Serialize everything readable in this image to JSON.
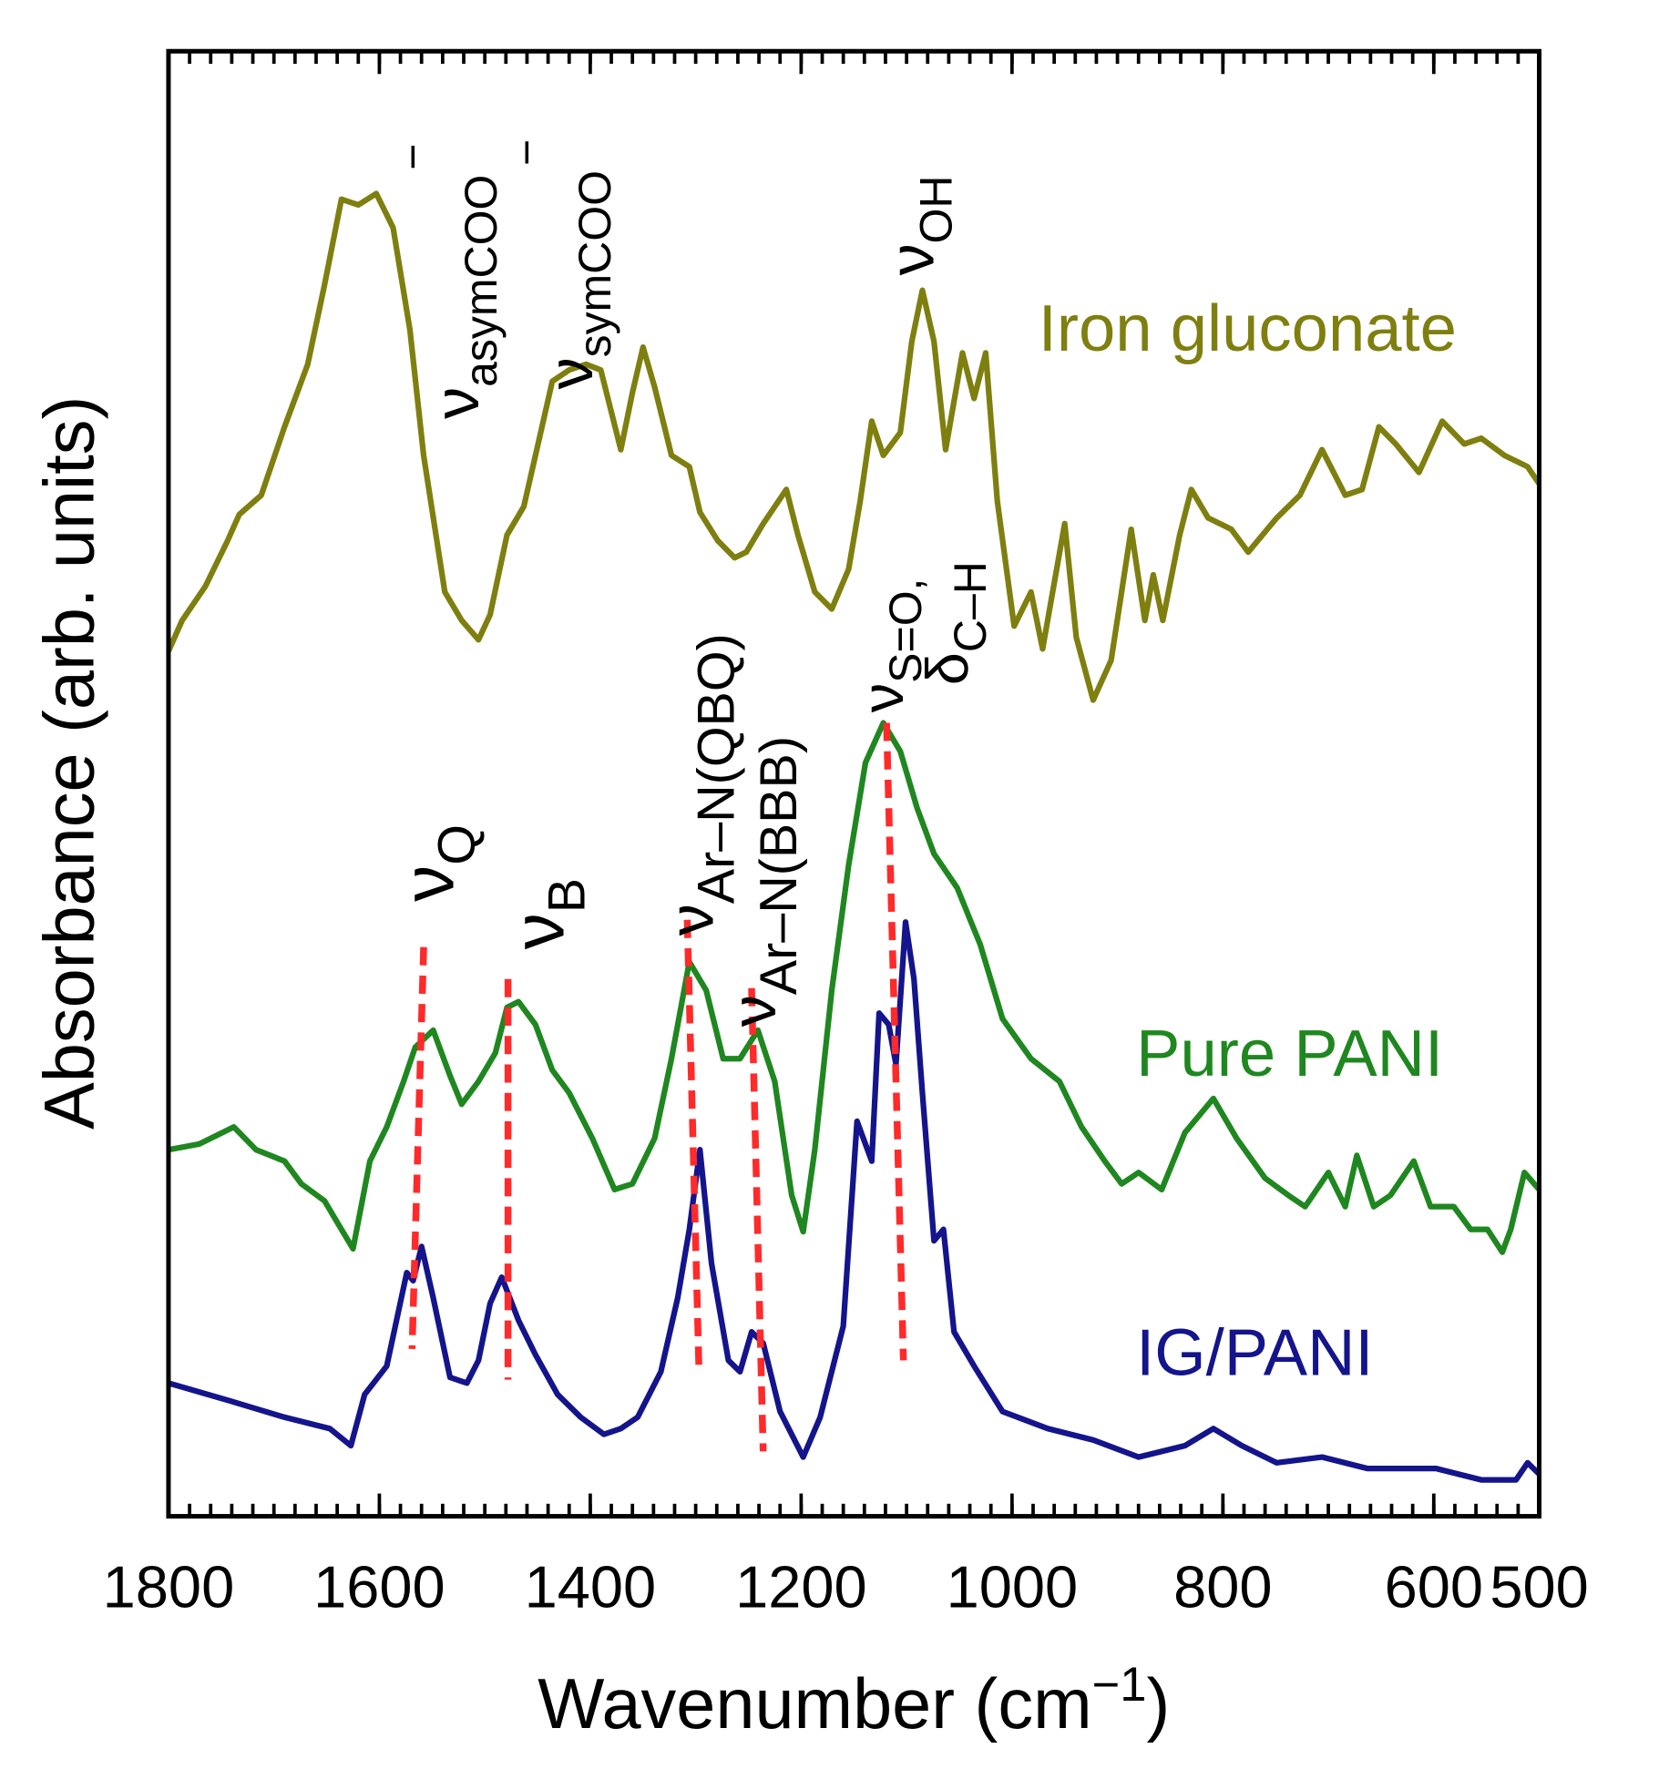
{
  "chart_data": {
    "type": "line",
    "xlabel": {
      "text": "Wavenumber (cm",
      "sup": "−1",
      "end": ")"
    },
    "ylabel": "Absorbance  (arb. units)",
    "xlim": [
      1800,
      500
    ],
    "ylim": [
      0,
      128.7
    ],
    "xticks": [
      1800,
      1600,
      1400,
      1200,
      1000,
      800,
      600,
      500
    ],
    "xminorticks": [
      1800,
      1780,
      1760,
      1740,
      1720,
      1700,
      1680,
      1660,
      1640,
      1620,
      1600,
      1580,
      1560,
      1540,
      1520,
      1500,
      1480,
      1460,
      1440,
      1420,
      1400,
      1380,
      1360,
      1340,
      1320,
      1300,
      1280,
      1260,
      1240,
      1220,
      1200,
      1180,
      1160,
      1140,
      1120,
      1100,
      1080,
      1060,
      1040,
      1020,
      1000,
      980,
      960,
      940,
      920,
      900,
      880,
      860,
      840,
      820,
      800,
      780,
      760,
      740,
      720,
      700,
      680,
      660,
      640,
      620,
      600,
      580,
      560,
      540,
      520,
      500
    ],
    "series": [
      {
        "name": "Iron gluconate",
        "color": "#7f7f10",
        "x": [
          1800,
          1787,
          1765,
          1744,
          1733,
          1712,
          1690,
          1668,
          1652,
          1636,
          1620,
          1603,
          1587,
          1571,
          1558,
          1538,
          1522,
          1506,
          1495,
          1479,
          1463,
          1447,
          1436,
          1420,
          1404,
          1390,
          1371,
          1360,
          1350,
          1339,
          1323,
          1306,
          1296,
          1279,
          1263,
          1252,
          1236,
          1214,
          1203,
          1187,
          1171,
          1155,
          1144,
          1133,
          1122,
          1106,
          1095,
          1085,
          1074,
          1063,
          1047,
          1036,
          1025,
          1014,
          998,
          982,
          971,
          950,
          939,
          923,
          906,
          887,
          874,
          866,
          857,
          841,
          830,
          814,
          792,
          776,
          749,
          727,
          706,
          684,
          668,
          652,
          636,
          614,
          592,
          571,
          555,
          533,
          511,
          500
        ],
        "values": [
          76.0,
          78.7,
          81.7,
          85.7,
          88.0,
          89.7,
          95.7,
          101.2,
          108.2,
          115.7,
          115.2,
          116.2,
          113.2,
          104.2,
          93.2,
          81.2,
          78.7,
          77.0,
          79.2,
          86.2,
          88.7,
          95.2,
          99.7,
          100.7,
          101.2,
          100.7,
          93.7,
          98.7,
          102.7,
          99.2,
          93.2,
          92.2,
          88.2,
          85.7,
          84.2,
          84.7,
          87.2,
          90.2,
          86.2,
          81.2,
          79.7,
          83.2,
          89.2,
          96.2,
          93.2,
          95.2,
          103.2,
          107.7,
          103.2,
          93.7,
          102.2,
          98.2,
          102.2,
          89.2,
          78.2,
          81.2,
          76.2,
          87.2,
          77.2,
          71.7,
          75.2,
          86.7,
          78.7,
          82.7,
          78.7,
          86.2,
          90.2,
          87.7,
          86.7,
          84.7,
          87.7,
          89.7,
          93.7,
          89.7,
          90.2,
          95.7,
          94.2,
          91.7,
          96.2,
          94.2,
          94.7,
          93.2,
          92.2,
          90.7
        ]
      },
      {
        "name": "Pure PANI",
        "color": "#1f871f",
        "x": [
          1800,
          1771,
          1738,
          1717,
          1690,
          1674,
          1652,
          1636,
          1625,
          1609,
          1593,
          1577,
          1566,
          1549,
          1533,
          1522,
          1506,
          1490,
          1479,
          1468,
          1452,
          1436,
          1420,
          1398,
          1377,
          1360,
          1339,
          1323,
          1306,
          1290,
          1274,
          1258,
          1241,
          1225,
          1209,
          1198,
          1187,
          1171,
          1155,
          1139,
          1122,
          1106,
          1090,
          1074,
          1052,
          1030,
          1009,
          982,
          955,
          934,
          912,
          896,
          880,
          858,
          836,
          809,
          787,
          760,
          738,
          722,
          700,
          684,
          673,
          657,
          641,
          619,
          603,
          581,
          565,
          549,
          535,
          527,
          514,
          500
        ],
        "values": [
          32.2,
          32.7,
          34.2,
          32.2,
          31.2,
          29.2,
          27.7,
          25.2,
          23.5,
          31.2,
          34.2,
          38.2,
          41.2,
          42.7,
          38.7,
          36.2,
          38.2,
          40.7,
          44.7,
          45.2,
          43.2,
          39.2,
          37.2,
          33.2,
          28.7,
          29.2,
          33.2,
          40.2,
          48.7,
          46.2,
          40.2,
          40.2,
          42.7,
          38.2,
          28.2,
          25.0,
          32.2,
          46.2,
          57.2,
          66.2,
          69.7,
          67.2,
          62.2,
          58.2,
          55.2,
          50.2,
          43.7,
          40.2,
          38.2,
          34.2,
          31.2,
          29.2,
          30.2,
          28.7,
          33.7,
          36.7,
          33.2,
          29.7,
          28.2,
          27.2,
          30.2,
          27.2,
          31.7,
          27.2,
          28.2,
          31.2,
          27.2,
          27.2,
          25.2,
          25.2,
          23.2,
          25.2,
          30.2,
          28.7
        ]
      },
      {
        "name": "IG/PANI",
        "color": "#14148c",
        "x": [
          1800,
          1744,
          1690,
          1647,
          1627,
          1614,
          1593,
          1574,
          1568,
          1560,
          1549,
          1533,
          1517,
          1506,
          1495,
          1484,
          1468,
          1452,
          1431,
          1409,
          1387,
          1371,
          1355,
          1333,
          1317,
          1306,
          1296,
          1285,
          1269,
          1258,
          1247,
          1236,
          1220,
          1198,
          1182,
          1160,
          1147,
          1133,
          1126,
          1117,
          1110,
          1101,
          1093,
          1085,
          1074,
          1065,
          1055,
          1036,
          1009,
          966,
          923,
          880,
          836,
          809,
          782,
          749,
          706,
          663,
          598,
          555,
          522,
          511,
          500
        ],
        "values": [
          11.7,
          10.2,
          8.7,
          7.7,
          6.2,
          10.7,
          13.2,
          21.4,
          20.7,
          23.7,
          19.2,
          12.2,
          11.7,
          13.7,
          18.7,
          21.0,
          17.2,
          14.2,
          10.7,
          8.7,
          7.2,
          7.7,
          8.7,
          12.7,
          19.2,
          25.2,
          32.2,
          22.2,
          13.7,
          12.7,
          16.2,
          15.2,
          9.2,
          5.2,
          8.7,
          16.7,
          34.7,
          31.2,
          44.2,
          43.2,
          39.7,
          52.2,
          47.2,
          37.2,
          24.2,
          25.2,
          16.2,
          13.2,
          9.2,
          7.7,
          6.7,
          5.2,
          6.2,
          7.7,
          6.2,
          4.7,
          5.2,
          4.2,
          4.2,
          3.2,
          3.2,
          4.7,
          3.7
        ]
      }
    ],
    "peak_lines": [
      {
        "x": [
          1558,
          1569
        ],
        "y": [
          50.0,
          14.7
        ]
      },
      {
        "x": [
          1478,
          1478
        ],
        "y": [
          47.2,
          12.0
        ]
      },
      {
        "x": [
          1308,
          1297
        ],
        "y": [
          52.4,
          13.2
        ]
      },
      {
        "x": [
          1247,
          1236
        ],
        "y": [
          46.4,
          5.7
        ]
      },
      {
        "x": [
          1119,
          1103
        ],
        "y": [
          69.7,
          13.7
        ]
      }
    ],
    "annotations": [
      {
        "text": "ν",
        "sub": "asymCOO",
        "sup": "−"
      },
      {
        "text": "ν",
        "sub": "symCOO",
        "sup": "−"
      },
      {
        "text": "ν",
        "sub": "OH"
      },
      {
        "text": "ν",
        "sub": "S=O,"
      },
      {
        "text": "δ",
        "sub": "C–H"
      },
      {
        "text": "ν",
        "sub": "Ar–N(QBQ)"
      },
      {
        "text": "ν",
        "sub": "Ar–N(BBB)"
      },
      {
        "text": "ν",
        "sub": "Q"
      },
      {
        "text": "ν",
        "sub": "B"
      }
    ]
  }
}
